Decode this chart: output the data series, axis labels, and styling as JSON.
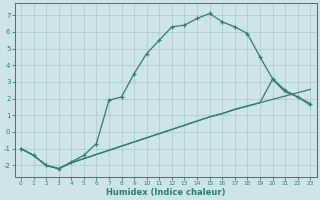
{
  "xlabel": "Humidex (Indice chaleur)",
  "bg_color": "#cde4e8",
  "grid_color": "#aac8cc",
  "line_color": "#2e7d6e",
  "xlim": [
    -0.5,
    23.5
  ],
  "ylim": [
    -2.7,
    7.7
  ],
  "xticks": [
    0,
    1,
    2,
    3,
    4,
    5,
    6,
    7,
    8,
    9,
    10,
    11,
    12,
    13,
    14,
    15,
    16,
    17,
    18,
    19,
    20,
    21,
    22,
    23
  ],
  "yticks": [
    -2,
    -1,
    0,
    1,
    2,
    3,
    4,
    5,
    6,
    7
  ],
  "curve1_x": [
    0,
    1,
    2,
    3,
    4,
    5,
    6,
    7,
    8,
    9,
    10,
    11,
    12,
    13,
    14,
    15,
    16,
    17,
    18,
    19,
    20,
    21,
    22,
    23
  ],
  "curve1_y": [
    -1.0,
    -1.4,
    -2.0,
    -2.2,
    -1.8,
    -1.4,
    -0.7,
    1.9,
    2.1,
    3.5,
    4.7,
    5.5,
    6.3,
    6.4,
    6.8,
    7.1,
    6.6,
    6.3,
    5.9,
    4.5,
    3.2,
    2.5,
    2.1,
    1.7
  ],
  "curve2_x": [
    0,
    1,
    2,
    3,
    4,
    5,
    6,
    7,
    8,
    9,
    10,
    11,
    12,
    13,
    14,
    15,
    16,
    17,
    18,
    19,
    20,
    21,
    22,
    23
  ],
  "curve2_y": [
    -1.0,
    -1.4,
    -2.0,
    -2.2,
    -1.85,
    -1.6,
    -1.35,
    -1.1,
    -0.85,
    -0.6,
    -0.35,
    -0.1,
    0.15,
    0.4,
    0.65,
    0.9,
    1.1,
    1.35,
    1.55,
    1.75,
    1.95,
    2.15,
    2.35,
    2.55
  ],
  "curve3_x": [
    0,
    1,
    2,
    3,
    4,
    5,
    6,
    7,
    8,
    9,
    10,
    11,
    12,
    13,
    14,
    15,
    16,
    17,
    18,
    19,
    20,
    21,
    22,
    23
  ],
  "curve3_y": [
    -1.0,
    -1.4,
    -2.0,
    -2.2,
    -1.85,
    -1.6,
    -1.35,
    -1.1,
    -0.85,
    -0.6,
    -0.35,
    -0.1,
    0.15,
    0.4,
    0.65,
    0.9,
    1.1,
    1.35,
    1.55,
    1.75,
    3.15,
    2.4,
    2.1,
    1.6
  ]
}
